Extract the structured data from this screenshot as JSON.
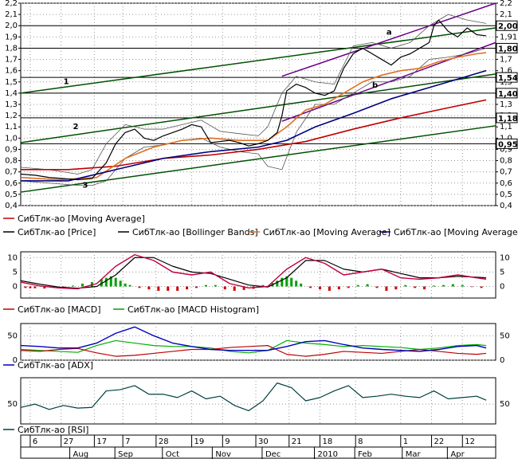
{
  "chart_data": {
    "type": "line",
    "panels": {
      "price": {
        "ylim": [
          0.4,
          2.2
        ],
        "ticks": [
          {
            "v": 2.2,
            "t": "2,2"
          },
          {
            "v": 2.1,
            "t": "2,1"
          },
          {
            "v": 2.0,
            "t": "2,0"
          },
          {
            "v": 1.9,
            "t": "1,9"
          },
          {
            "v": 1.8,
            "t": "1,8"
          },
          {
            "v": 1.7,
            "t": "1,7"
          },
          {
            "v": 1.6,
            "t": "1,6"
          },
          {
            "v": 1.5,
            "t": "1,5"
          },
          {
            "v": 1.4,
            "t": "1,4"
          },
          {
            "v": 1.3,
            "t": "1,3"
          },
          {
            "v": 1.2,
            "t": "1,2"
          },
          {
            "v": 1.1,
            "t": "1,1"
          },
          {
            "v": 1.0,
            "t": "1,0"
          },
          {
            "v": 0.9,
            "t": "0,9"
          },
          {
            "v": 0.8,
            "t": "0,8"
          },
          {
            "v": 0.7,
            "t": "0,7"
          },
          {
            "v": 0.6,
            "t": "0,6"
          },
          {
            "v": 0.5,
            "t": "0,5"
          },
          {
            "v": 0.4,
            "t": "0,4"
          }
        ],
        "right_ticks": [
          {
            "v": 2.2,
            "t": "2,2"
          },
          {
            "v": 2.1,
            "t": "2,1"
          },
          {
            "v": 1.9,
            "t": "1,91"
          },
          {
            "v": 1.7,
            "t": "1,7"
          },
          {
            "v": 1.6,
            "t": "1,6"
          },
          {
            "v": 1.5,
            "t": "1,5"
          },
          {
            "v": 1.3,
            "t": "1,3"
          },
          {
            "v": 1.2,
            "t": "1,2"
          },
          {
            "v": 1.1,
            "t": "1,1"
          },
          {
            "v": 1.0,
            "t": "1,0"
          },
          {
            "v": 0.9,
            "t": "0,9"
          },
          {
            "v": 0.8,
            "t": "0,8"
          },
          {
            "v": 0.7,
            "t": "0,7"
          },
          {
            "v": 0.6,
            "t": "0,6"
          },
          {
            "v": 0.5,
            "t": "0,5"
          },
          {
            "v": 0.4,
            "t": "0,4"
          }
        ],
        "levels": [
          {
            "v": 2.0,
            "t": "2,00"
          },
          {
            "v": 1.8,
            "t": "1,80"
          },
          {
            "v": 1.54,
            "t": "1,54"
          },
          {
            "v": 1.4,
            "t": "1,40"
          },
          {
            "v": 1.18,
            "t": "1,18"
          },
          {
            "v": 0.95,
            "t": "0,95"
          }
        ],
        "annotations": [
          {
            "t": "1",
            "x": 0.09,
            "y": 1.48
          },
          {
            "t": "2",
            "x": 0.11,
            "y": 1.08
          },
          {
            "t": "3",
            "x": 0.13,
            "y": 0.56
          },
          {
            "t": "a",
            "x": 0.77,
            "y": 1.92
          },
          {
            "t": "b",
            "x": 0.74,
            "y": 1.45
          }
        ]
      },
      "macd": {
        "ylim": [
          -4,
          12
        ],
        "ticks": [
          {
            "v": 10,
            "t": "10"
          },
          {
            "v": 5,
            "t": "5"
          },
          {
            "v": 0,
            "t": "0"
          }
        ]
      },
      "adx": {
        "ylim": [
          0,
          75
        ],
        "ticks": [
          {
            "v": 50,
            "t": "50"
          },
          {
            "v": 0,
            "t": "0"
          }
        ]
      },
      "rsi": {
        "ylim": [
          20,
          90
        ],
        "ticks": [
          {
            "v": 50,
            "t": "50"
          }
        ]
      }
    },
    "legend_price": [
      {
        "name": "СибТлк-ао [Moving Average]",
        "color": "#c00000"
      },
      {
        "name": "СибТлк-ао [Price]",
        "color": "#000000"
      },
      {
        "name": "СибТлк-ао [Bollinger Bands]",
        "color": "#000000"
      },
      {
        "name": "СибТлк-ао [Moving Average]",
        "color": "#e07020"
      },
      {
        "name": "СибТлк-ао [Moving Average",
        "color": "#000080"
      }
    ],
    "legend_macd": [
      {
        "name": "СибТлк-ао [MACD]",
        "color": "#c00000"
      },
      {
        "name": "СибТлк-ао [MACD Histogram]",
        "color": "#00a000"
      }
    ],
    "legend_adx": [
      {
        "name": "СибТлк-ао [ADX]",
        "color": "#0000c0"
      }
    ],
    "legend_rsi": [
      {
        "name": "СибТлк-ао [RSI]",
        "color": "#004040"
      }
    ],
    "x_day_labels": [
      {
        "x": 0.02,
        "t": "6"
      },
      {
        "x": 0.085,
        "t": "27"
      },
      {
        "x": 0.155,
        "t": "17"
      },
      {
        "x": 0.215,
        "t": "7"
      },
      {
        "x": 0.285,
        "t": "28"
      },
      {
        "x": 0.36,
        "t": "19"
      },
      {
        "x": 0.425,
        "t": "9"
      },
      {
        "x": 0.495,
        "t": "30"
      },
      {
        "x": 0.565,
        "t": "21"
      },
      {
        "x": 0.63,
        "t": "18"
      },
      {
        "x": 0.705,
        "t": "8"
      },
      {
        "x": 0.8,
        "t": "1"
      },
      {
        "x": 0.865,
        "t": "22"
      },
      {
        "x": 0.93,
        "t": "12"
      }
    ],
    "x_month_labels": [
      {
        "x": 0.11,
        "t": "Aug"
      },
      {
        "x": 0.205,
        "t": "Sep"
      },
      {
        "x": 0.305,
        "t": "Oct"
      },
      {
        "x": 0.41,
        "t": "Nov"
      },
      {
        "x": 0.515,
        "t": "Dec"
      },
      {
        "x": 0.625,
        "t": "2010"
      },
      {
        "x": 0.71,
        "t": "Feb"
      },
      {
        "x": 0.81,
        "t": "Mar"
      },
      {
        "x": 0.905,
        "t": "Apr"
      }
    ],
    "price_series": {
      "x": [
        0,
        0.03,
        0.06,
        0.09,
        0.12,
        0.15,
        0.18,
        0.2,
        0.22,
        0.24,
        0.26,
        0.28,
        0.3,
        0.32,
        0.34,
        0.36,
        0.38,
        0.4,
        0.42,
        0.44,
        0.46,
        0.48,
        0.5,
        0.52,
        0.54,
        0.55,
        0.56,
        0.58,
        0.6,
        0.62,
        0.64,
        0.66,
        0.68,
        0.7,
        0.72,
        0.74,
        0.76,
        0.78,
        0.8,
        0.82,
        0.84,
        0.86,
        0.87,
        0.88,
        0.9,
        0.92,
        0.94,
        0.96,
        0.98
      ],
      "y": [
        0.68,
        0.67,
        0.65,
        0.64,
        0.63,
        0.64,
        0.78,
        0.95,
        1.05,
        1.08,
        1.0,
        0.98,
        1.02,
        1.05,
        1.08,
        1.12,
        1.1,
        0.96,
        0.97,
        0.98,
        0.96,
        0.93,
        0.95,
        0.98,
        1.05,
        1.2,
        1.42,
        1.48,
        1.45,
        1.4,
        1.38,
        1.42,
        1.62,
        1.75,
        1.8,
        1.75,
        1.7,
        1.65,
        1.72,
        1.75,
        1.8,
        1.85,
        2.0,
        2.05,
        1.95,
        1.9,
        1.98,
        1.92,
        1.91
      ]
    },
    "bollinger_upper": {
      "x": [
        0,
        0.06,
        0.12,
        0.15,
        0.18,
        0.22,
        0.26,
        0.3,
        0.34,
        0.38,
        0.42,
        0.46,
        0.5,
        0.52,
        0.55,
        0.58,
        0.62,
        0.66,
        0.7,
        0.74,
        0.78,
        0.82,
        0.86,
        0.9,
        0.94,
        0.98
      ],
      "y": [
        0.74,
        0.72,
        0.68,
        0.72,
        0.95,
        1.12,
        1.08,
        1.08,
        1.12,
        1.16,
        1.06,
        1.04,
        1.02,
        1.1,
        1.4,
        1.55,
        1.5,
        1.48,
        1.82,
        1.85,
        1.8,
        1.85,
        2.0,
        2.1,
        2.05,
        2.02
      ]
    },
    "bollinger_lower": {
      "x": [
        0,
        0.06,
        0.12,
        0.15,
        0.18,
        0.22,
        0.26,
        0.3,
        0.34,
        0.38,
        0.42,
        0.46,
        0.5,
        0.52,
        0.55,
        0.58,
        0.62,
        0.66,
        0.7,
        0.74,
        0.78,
        0.82,
        0.86,
        0.9,
        0.94,
        0.98
      ],
      "y": [
        0.62,
        0.6,
        0.58,
        0.58,
        0.62,
        0.82,
        0.92,
        0.94,
        0.98,
        1.0,
        0.92,
        0.88,
        0.86,
        0.75,
        0.72,
        1.05,
        1.3,
        1.3,
        1.4,
        1.5,
        1.5,
        1.55,
        1.7,
        1.72,
        1.75,
        1.8
      ]
    },
    "ma_red": {
      "x": [
        0,
        0.1,
        0.2,
        0.3,
        0.4,
        0.5,
        0.6,
        0.7,
        0.8,
        0.9,
        0.98
      ],
      "y": [
        0.72,
        0.72,
        0.75,
        0.82,
        0.85,
        0.9,
        0.97,
        1.08,
        1.18,
        1.27,
        1.34
      ]
    },
    "ma_orange": {
      "x": [
        0,
        0.08,
        0.16,
        0.22,
        0.28,
        0.34,
        0.4,
        0.46,
        0.52,
        0.56,
        0.6,
        0.64,
        0.68,
        0.72,
        0.76,
        0.8,
        0.84,
        0.88,
        0.92,
        0.96,
        0.98
      ],
      "y": [
        0.65,
        0.63,
        0.65,
        0.82,
        0.92,
        0.98,
        1.0,
        0.98,
        0.98,
        1.1,
        1.25,
        1.3,
        1.4,
        1.5,
        1.56,
        1.6,
        1.62,
        1.68,
        1.72,
        1.75,
        1.76
      ]
    },
    "ma_navy": {
      "x": [
        0,
        0.1,
        0.2,
        0.3,
        0.4,
        0.5,
        0.56,
        0.62,
        0.7,
        0.78,
        0.86,
        0.94,
        0.98
      ],
      "y": [
        0.62,
        0.62,
        0.72,
        0.82,
        0.88,
        0.92,
        0.98,
        1.1,
        1.22,
        1.35,
        1.45,
        1.55,
        1.6
      ]
    },
    "trend_lines": [
      {
        "x": [
          0,
          1
        ],
        "y": [
          1.4,
          1.98
        ],
        "color": "#005000"
      },
      {
        "x": [
          0,
          1
        ],
        "y": [
          0.96,
          1.57
        ],
        "color": "#005000"
      },
      {
        "x": [
          0,
          1
        ],
        "y": [
          0.52,
          1.11
        ],
        "color": "#005000"
      },
      {
        "x": [
          0.55,
          1
        ],
        "y": [
          1.55,
          2.2
        ],
        "color": "#6a008a"
      },
      {
        "x": [
          0.55,
          1
        ],
        "y": [
          1.15,
          1.85
        ],
        "color": "#6a008a"
      }
    ],
    "macd_series": {
      "x": [
        0,
        0.04,
        0.08,
        0.12,
        0.16,
        0.2,
        0.24,
        0.28,
        0.32,
        0.36,
        0.4,
        0.44,
        0.48,
        0.52,
        0.56,
        0.6,
        0.64,
        0.68,
        0.72,
        0.76,
        0.8,
        0.84,
        0.88,
        0.92,
        0.96,
        0.98
      ],
      "y": [
        1.5,
        0.2,
        -0.5,
        -0.8,
        1,
        7,
        11,
        9,
        5,
        4,
        5,
        1,
        -0.5,
        0,
        6,
        10,
        8,
        4,
        5,
        6,
        3,
        2.5,
        3,
        4,
        3,
        2.5
      ]
    },
    "macd_signal": {
      "x": [
        0,
        0.04,
        0.08,
        0.12,
        0.16,
        0.2,
        0.24,
        0.28,
        0.32,
        0.36,
        0.4,
        0.44,
        0.48,
        0.52,
        0.56,
        0.6,
        0.64,
        0.68,
        0.72,
        0.76,
        0.8,
        0.84,
        0.88,
        0.92,
        0.96,
        0.98
      ],
      "y": [
        2,
        0.8,
        -0.2,
        -0.6,
        0,
        4,
        10,
        10,
        7,
        5,
        4.5,
        2.5,
        0.5,
        -0.2,
        3,
        9,
        9,
        6,
        5,
        6,
        4.5,
        3,
        3,
        3.5,
        3.2,
        3
      ]
    },
    "macd_hist": {
      "x": [
        0.01,
        0.02,
        0.03,
        0.05,
        0.07,
        0.09,
        0.11,
        0.13,
        0.15,
        0.17,
        0.18,
        0.19,
        0.2,
        0.21,
        0.22,
        0.23,
        0.25,
        0.27,
        0.29,
        0.31,
        0.33,
        0.35,
        0.37,
        0.39,
        0.41,
        0.43,
        0.45,
        0.47,
        0.49,
        0.51,
        0.53,
        0.54,
        0.55,
        0.56,
        0.57,
        0.58,
        0.59,
        0.61,
        0.63,
        0.65,
        0.67,
        0.69,
        0.71,
        0.73,
        0.75,
        0.77,
        0.79,
        0.81,
        0.83,
        0.85,
        0.87,
        0.89,
        0.91,
        0.93,
        0.95,
        0.97
      ],
      "y": [
        -0.5,
        -0.6,
        -0.6,
        -0.7,
        -0.5,
        -0.3,
        0.3,
        1,
        1.5,
        2.5,
        3,
        3.5,
        3,
        2,
        1,
        0.5,
        -0.5,
        -1,
        -1.5,
        -1.5,
        -1.5,
        -1,
        -0.5,
        0.5,
        0.5,
        -1,
        -1.5,
        -1.2,
        -0.8,
        0.5,
        1.2,
        2,
        3,
        3.5,
        3,
        2,
        1,
        -0.5,
        -1,
        -1.5,
        -1,
        -0.5,
        0.5,
        0.8,
        -0.5,
        -1.5,
        -1,
        0.5,
        -0.5,
        -1,
        0.3,
        0.5,
        0.8,
        0.5,
        -0.2,
        -0.5
      ]
    },
    "adx_series": {
      "x": [
        0,
        0.04,
        0.08,
        0.12,
        0.16,
        0.2,
        0.24,
        0.28,
        0.32,
        0.36,
        0.4,
        0.44,
        0.48,
        0.52,
        0.56,
        0.6,
        0.64,
        0.68,
        0.72,
        0.76,
        0.8,
        0.84,
        0.88,
        0.92,
        0.96,
        0.98
      ],
      "y": [
        30,
        28,
        25,
        25,
        35,
        55,
        68,
        50,
        35,
        28,
        22,
        20,
        20,
        20,
        28,
        38,
        40,
        32,
        25,
        22,
        20,
        18,
        22,
        28,
        30,
        25
      ]
    },
    "di_plus": {
      "x": [
        0,
        0.04,
        0.08,
        0.12,
        0.16,
        0.2,
        0.24,
        0.28,
        0.32,
        0.36,
        0.4,
        0.44,
        0.48,
        0.52,
        0.56,
        0.6,
        0.64,
        0.68,
        0.72,
        0.76,
        0.8,
        0.84,
        0.88,
        0.92,
        0.96,
        0.98
      ],
      "y": [
        22,
        20,
        18,
        16,
        30,
        40,
        35,
        30,
        28,
        28,
        25,
        18,
        15,
        20,
        40,
        35,
        32,
        28,
        30,
        28,
        26,
        22,
        25,
        30,
        32,
        30
      ]
    },
    "di_minus": {
      "x": [
        0,
        0.04,
        0.08,
        0.12,
        0.16,
        0.2,
        0.24,
        0.28,
        0.32,
        0.36,
        0.4,
        0.44,
        0.48,
        0.52,
        0.56,
        0.6,
        0.64,
        0.68,
        0.72,
        0.76,
        0.8,
        0.84,
        0.88,
        0.92,
        0.96,
        0.98
      ],
      "y": [
        20,
        18,
        22,
        24,
        15,
        8,
        10,
        14,
        18,
        22,
        22,
        26,
        28,
        30,
        12,
        8,
        12,
        18,
        16,
        14,
        18,
        22,
        18,
        14,
        12,
        14
      ]
    },
    "rsi_series": {
      "x": [
        0,
        0.03,
        0.06,
        0.09,
        0.12,
        0.15,
        0.18,
        0.21,
        0.24,
        0.27,
        0.3,
        0.33,
        0.36,
        0.39,
        0.42,
        0.45,
        0.48,
        0.51,
        0.54,
        0.57,
        0.6,
        0.63,
        0.66,
        0.69,
        0.72,
        0.75,
        0.78,
        0.81,
        0.84,
        0.87,
        0.9,
        0.93,
        0.96,
        0.98
      ],
      "y": [
        45,
        50,
        42,
        48,
        44,
        45,
        70,
        72,
        78,
        65,
        65,
        60,
        70,
        58,
        62,
        48,
        40,
        55,
        82,
        75,
        55,
        60,
        70,
        78,
        60,
        62,
        65,
        62,
        60,
        70,
        58,
        60,
        62,
        56
      ]
    }
  }
}
